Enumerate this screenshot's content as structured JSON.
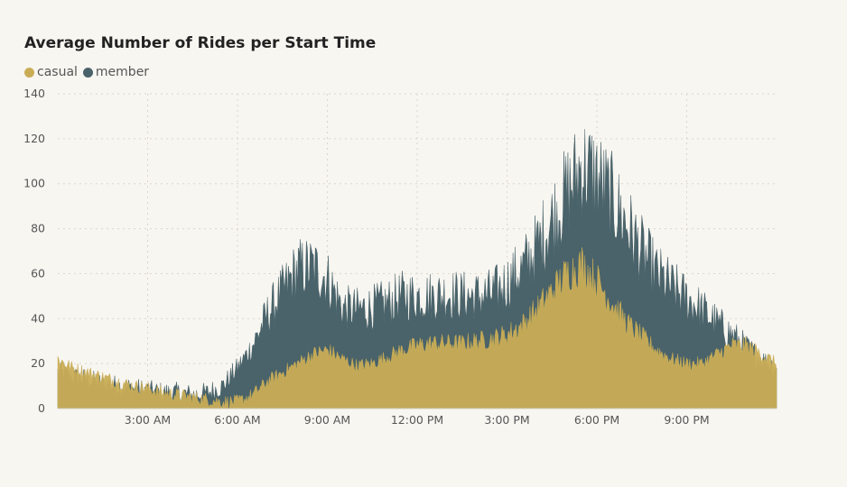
{
  "chart_data": {
    "type": "area",
    "title": "Average Number of Rides per Start Time",
    "xlabel": "",
    "ylabel": "",
    "ylim": [
      0,
      140
    ],
    "yticks": [
      0,
      20,
      40,
      60,
      80,
      100,
      120,
      140
    ],
    "xticks": [
      "3:00 AM",
      "6:00 AM",
      "9:00 AM",
      "12:00 PM",
      "3:00 PM",
      "6:00 PM",
      "9:00 PM"
    ],
    "xtick_hours": [
      3,
      6,
      9,
      12,
      15,
      18,
      21
    ],
    "xlim_hours": [
      0,
      24
    ],
    "grid": true,
    "legend_position": "top-left",
    "stacked": false,
    "x_hours": [
      0,
      0.5,
      1,
      1.5,
      2,
      2.5,
      3,
      3.5,
      4,
      4.5,
      5,
      5.5,
      6,
      6.5,
      7,
      7.5,
      8,
      8.5,
      9,
      9.5,
      10,
      10.5,
      11,
      11.5,
      12,
      12.5,
      13,
      13.5,
      14,
      14.5,
      15,
      15.5,
      16,
      16.5,
      17,
      17.5,
      18,
      18.5,
      19,
      19.5,
      20,
      20.5,
      21,
      21.5,
      22,
      22.5,
      23,
      23.5,
      24
    ],
    "series": [
      {
        "name": "member",
        "color": "#4a636a",
        "values": [
          16,
          14,
          13,
          11,
          10,
          9,
          8,
          7,
          7,
          6,
          7,
          10,
          18,
          28,
          42,
          52,
          62,
          63,
          58,
          45,
          44,
          45,
          47,
          50,
          50,
          50,
          51,
          50,
          50,
          51,
          56,
          62,
          72,
          84,
          96,
          108,
          103,
          93,
          82,
          70,
          60,
          54,
          49,
          44,
          38,
          33,
          27,
          22,
          18
        ]
      },
      {
        "name": "casual",
        "color": "#c9ad56",
        "values": [
          22,
          18,
          16,
          14,
          12,
          10,
          9,
          7,
          6,
          5,
          4,
          3,
          3,
          6,
          12,
          16,
          20,
          24,
          26,
          22,
          19,
          20,
          23,
          26,
          28,
          29,
          29,
          29,
          30,
          31,
          33,
          37,
          44,
          52,
          60,
          64,
          57,
          47,
          38,
          32,
          26,
          22,
          20,
          20,
          24,
          28,
          28,
          24,
          20
        ]
      }
    ]
  },
  "legend": {
    "casual_label": "casual",
    "member_label": "member",
    "casual_color": "#c9ad56",
    "member_color": "#4a636a"
  }
}
